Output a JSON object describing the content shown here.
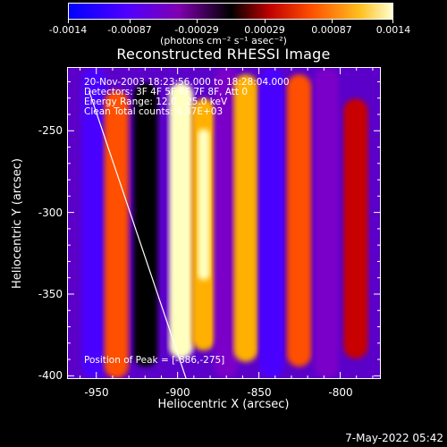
{
  "colorbar": {
    "tick_labels": [
      "-0.0014",
      "-0.00087",
      "-0.00029",
      "0.00029",
      "0.00087",
      "0.0014"
    ],
    "units_label": "(photons cm⁻² s⁻¹ asec⁻²)"
  },
  "plot": {
    "title": "Reconstructed RHESSI Image",
    "info_lines": [
      "20-Nov-2003 18:23:56.000 to 18:28:04.000",
      "Detectors: 3F 4F 5F 6F 7F 8F, Att 0",
      "Energy Range: 12.0 - 25.0 keV",
      "Clean       Total counts: 4.37E+03"
    ],
    "peak_text": "Position of Peak = [-886,-275]",
    "xlabel": "Heliocentric X (arcsec)",
    "ylabel": "Heliocentric Y (arcsec)",
    "x_ticks": [
      "-950",
      "-900",
      "-850",
      "-800"
    ],
    "y_ticks": [
      "-250",
      "-300",
      "-350",
      "-400"
    ]
  },
  "chart_data": {
    "type": "heatmap",
    "title": "Reconstructed RHESSI Image",
    "xlabel": "Heliocentric X (arcsec)",
    "ylabel": "Heliocentric Y (arcsec)",
    "xlim": [
      -968,
      -775
    ],
    "ylim": [
      -402,
      -211
    ],
    "x_ticks": [
      -950,
      -900,
      -850,
      -800
    ],
    "y_ticks": [
      -250,
      -300,
      -350,
      -400
    ],
    "colorbar_range": [
      -0.0014,
      0.0014
    ],
    "colorbar_ticks": [
      -0.0014,
      -0.00087,
      -0.00029,
      0.00029,
      0.00087,
      0.0014
    ],
    "colormap": [
      "#0000ff",
      "#4a00ff",
      "#7a00c8",
      "#000000",
      "#c80000",
      "#ff5000",
      "#ffb000",
      "#ffffc0"
    ],
    "peak_position": [
      -886,
      -275
    ],
    "bands": [
      {
        "x": -952,
        "y_top": -211,
        "y_bottom": -402,
        "intensity": -0.0011
      },
      {
        "x": -938,
        "y_top": -225,
        "y_bottom": -402,
        "intensity": 0.00045
      },
      {
        "x": -920,
        "y_top": -220,
        "y_bottom": -395,
        "intensity": -0.0004
      },
      {
        "x": -898,
        "y_top": -220,
        "y_bottom": -390,
        "intensity": 0.0013
      },
      {
        "x": -884,
        "y_top": -230,
        "y_bottom": -385,
        "intensity": 0.00095
      },
      {
        "x": -870,
        "y_top": -211,
        "y_bottom": -402,
        "intensity": -0.0005
      },
      {
        "x": -858,
        "y_top": -215,
        "y_bottom": -392,
        "intensity": 0.0008
      },
      {
        "x": -842,
        "y_top": -211,
        "y_bottom": -402,
        "intensity": -0.0009
      },
      {
        "x": -825,
        "y_top": -215,
        "y_bottom": -395,
        "intensity": 0.0007
      },
      {
        "x": -808,
        "y_top": -211,
        "y_bottom": -402,
        "intensity": -0.0008
      },
      {
        "x": -790,
        "y_top": -230,
        "y_bottom": -390,
        "intensity": 0.0003
      }
    ],
    "limb_line": {
      "x_start": -955,
      "y_start": -225,
      "x_end": -895,
      "y_end": -402
    }
  },
  "datestamp": "7-May-2022 05:42"
}
